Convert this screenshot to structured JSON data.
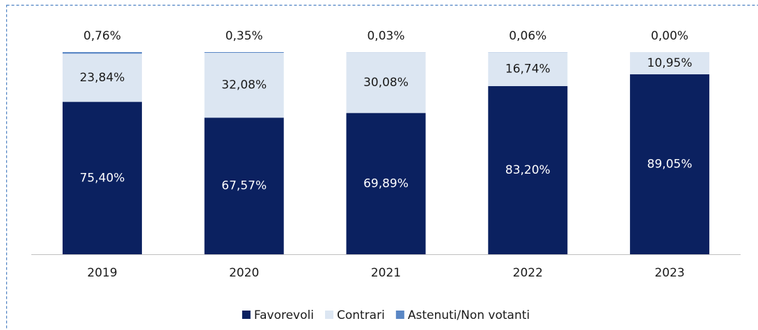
{
  "chart_data": {
    "type": "bar",
    "stacked": true,
    "categories": [
      "2019",
      "2020",
      "2021",
      "2022",
      "2023"
    ],
    "ylim": [
      0,
      100
    ],
    "legend": "bottom",
    "series": [
      {
        "name": "Favorevoli",
        "color": "#0b2160",
        "values": [
          75.4,
          67.57,
          69.89,
          83.2,
          89.05
        ],
        "value_labels": [
          "75,40%",
          "67,57%",
          "69,89%",
          "83,20%",
          "89,05%"
        ]
      },
      {
        "name": "Contrari",
        "color": "#dce6f2",
        "values": [
          23.84,
          32.08,
          30.08,
          16.74,
          10.95
        ],
        "value_labels": [
          "23,84%",
          "32,08%",
          "30,08%",
          "16,74%",
          "10,95%"
        ]
      },
      {
        "name": "Astenuti/Non votanti",
        "color": "#5a87c5",
        "values": [
          0.76,
          0.35,
          0.03,
          0.06,
          0.0
        ],
        "value_labels": [
          "0,76%",
          "0,35%",
          "0,03%",
          "0,06%",
          "0,00%"
        ]
      }
    ]
  }
}
